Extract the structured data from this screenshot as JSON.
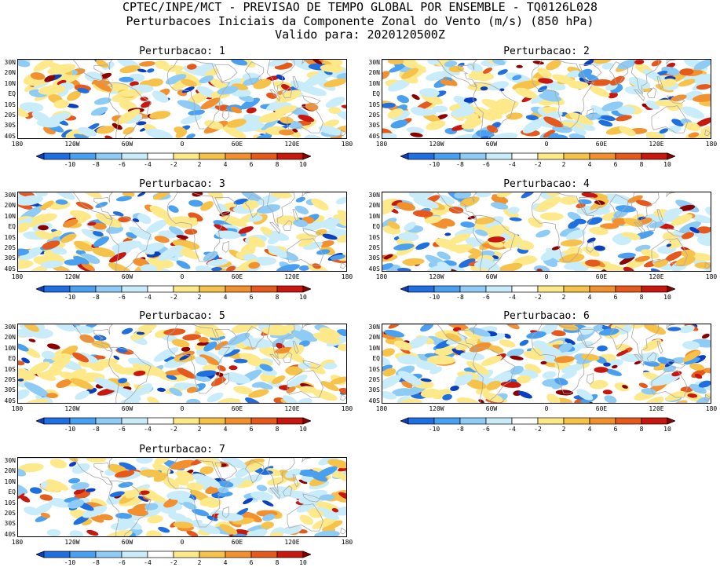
{
  "header": {
    "line1": "CPTEC/INPE/MCT - PREVISAO DE TEMPO GLOBAL POR ENSEMBLE - TQ0126L028",
    "line2": "Perturbacoes Iniciais da Componente Zonal do Vento (m/s) (850 hPa)",
    "line3": "Valido para: 2020120500Z"
  },
  "panels": [
    {
      "title": "Perturbacao: 1"
    },
    {
      "title": "Perturbacao: 2"
    },
    {
      "title": "Perturbacao: 3"
    },
    {
      "title": "Perturbacao: 4"
    },
    {
      "title": "Perturbacao: 5"
    },
    {
      "title": "Perturbacao: 6"
    },
    {
      "title": "Perturbacao: 7"
    }
  ],
  "lat_labels": [
    "30N",
    "20N",
    "10N",
    "EQ",
    "10S",
    "20S",
    "30S",
    "40S"
  ],
  "lon_labels": [
    "180",
    "120W",
    "60W",
    "0",
    "60E",
    "120E",
    "180"
  ],
  "colorbar": {
    "labels": [
      "-10",
      "-8",
      "-6",
      "-4",
      "-2",
      "2",
      "4",
      "6",
      "8",
      "10"
    ],
    "colors": [
      "#0a3fbf",
      "#1f6fe0",
      "#4aa0f0",
      "#8fccf5",
      "#c8ecfa",
      "#ffffff",
      "#fde98a",
      "#f7c24a",
      "#f29030",
      "#e55a1c",
      "#c8170e",
      "#8b0000"
    ]
  },
  "map_colors": {
    "coast": "#a8a8a8"
  }
}
